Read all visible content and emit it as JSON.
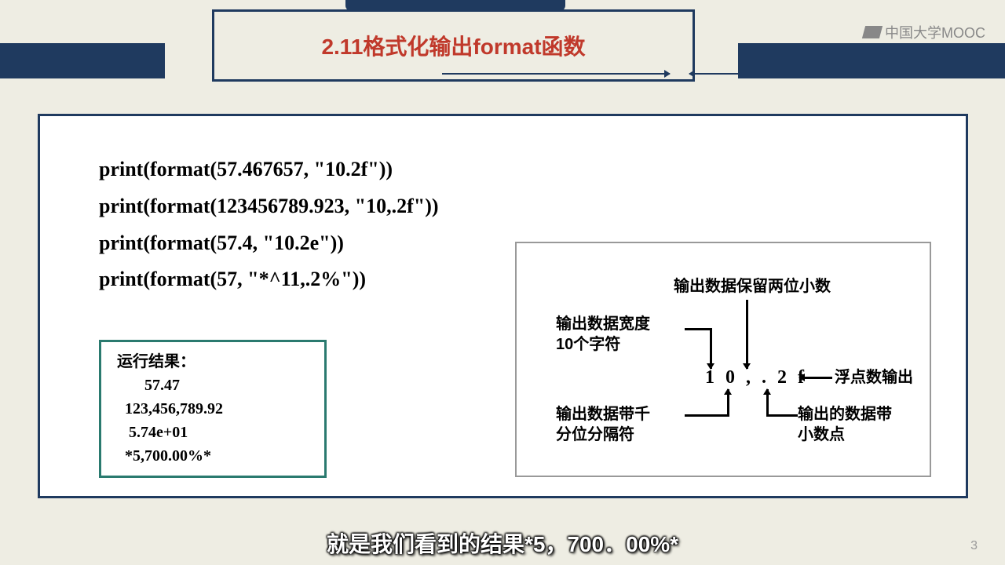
{
  "title": "2.11格式化输出format函数",
  "watermark": "中国大学MOOC",
  "code": {
    "line1": "print(format(57.467657, \"10.2f\"))",
    "line2": "print(format(123456789.923, \"10,.2f\"))",
    "line3": "print(format(57.4, \"10.2e\"))",
    "line4": "print(format(57, \"*^11,.2%\"))"
  },
  "result": {
    "title": "运行结果：",
    "r1": "     57.47",
    "r2": "123,456,789.92",
    "r3": " 5.74e+01",
    "r4": "*5,700.00%*"
  },
  "diagram": {
    "spec": "1 0 , . 2 f",
    "label_top": "输出数据保留两位小数",
    "label_left_top_1": "输出数据宽度",
    "label_left_top_2": "10个字符",
    "label_right": "浮点数输出",
    "label_left_bot_1": "输出数据带千",
    "label_left_bot_2": "分位分隔符",
    "label_right_bot_1": "输出的数据带",
    "label_right_bot_2": "小数点"
  },
  "subtitle": "就是我们看到的结果*5，700．00%*",
  "page_number": "3",
  "colors": {
    "header_bar": "#1f3a5f",
    "title_color": "#c0392b",
    "background": "#eeede3",
    "result_border": "#2a7a6f",
    "diagram_border": "#999999"
  }
}
